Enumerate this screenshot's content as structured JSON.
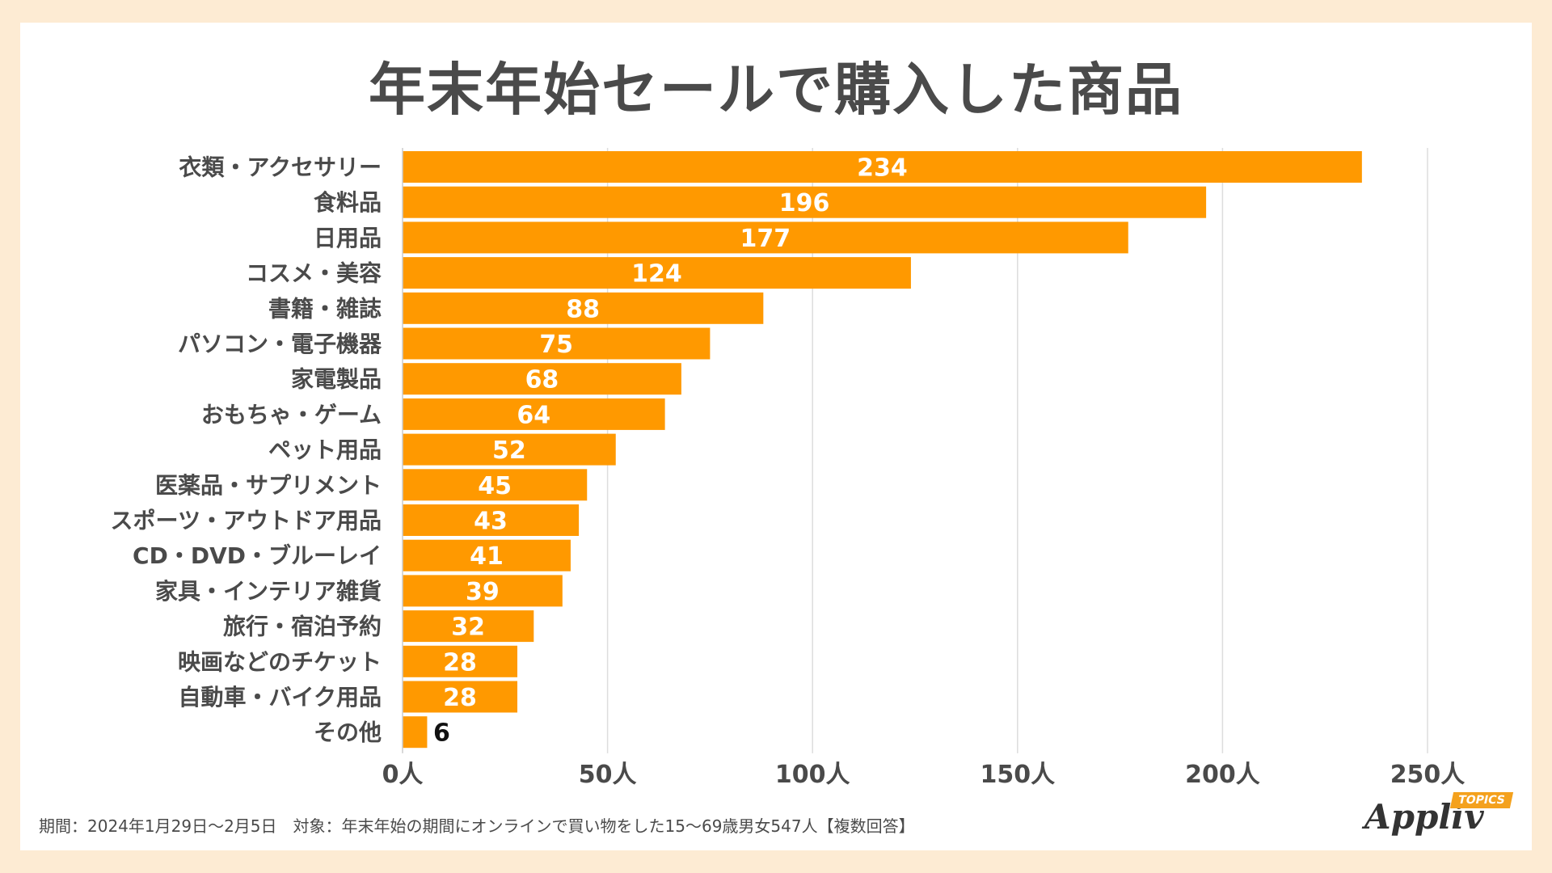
{
  "title": "年末年始セールで購入した商品",
  "footer_note": "期間：2024年1月29日～2月5日　対象：年末年始の期間にオンラインで買い物をした15～69歳男女547人【複数回答】",
  "logo": {
    "text": "Appliv",
    "badge": "TOPICS"
  },
  "colors": {
    "bar": "#ff9900",
    "background": "#fdebd3",
    "text": "#4a4a4a",
    "grid": "#dddddd"
  },
  "chart_data": {
    "type": "bar",
    "orientation": "horizontal",
    "title": "年末年始セールで購入した商品",
    "categories": [
      "衣類・アクセサリー",
      "食料品",
      "日用品",
      "コスメ・美容",
      "書籍・雑誌",
      "パソコン・電子機器",
      "家電製品",
      "おもちゃ・ゲーム",
      "ペット用品",
      "医薬品・サプリメント",
      "スポーツ・アウトドア用品",
      "CD・DVD・ブルーレイ",
      "家具・インテリア雑貨",
      "旅行・宿泊予約",
      "映画などのチケット",
      "自動車・バイク用品",
      "その他"
    ],
    "values": [
      234,
      196,
      177,
      124,
      88,
      75,
      68,
      64,
      52,
      45,
      43,
      41,
      39,
      32,
      28,
      28,
      6
    ],
    "xlim": [
      0,
      250
    ],
    "xticks": [
      0,
      50,
      100,
      150,
      200,
      250
    ],
    "xtick_labels": [
      "0人",
      "50人",
      "100人",
      "150人",
      "200人",
      "250人"
    ],
    "grid": true
  }
}
